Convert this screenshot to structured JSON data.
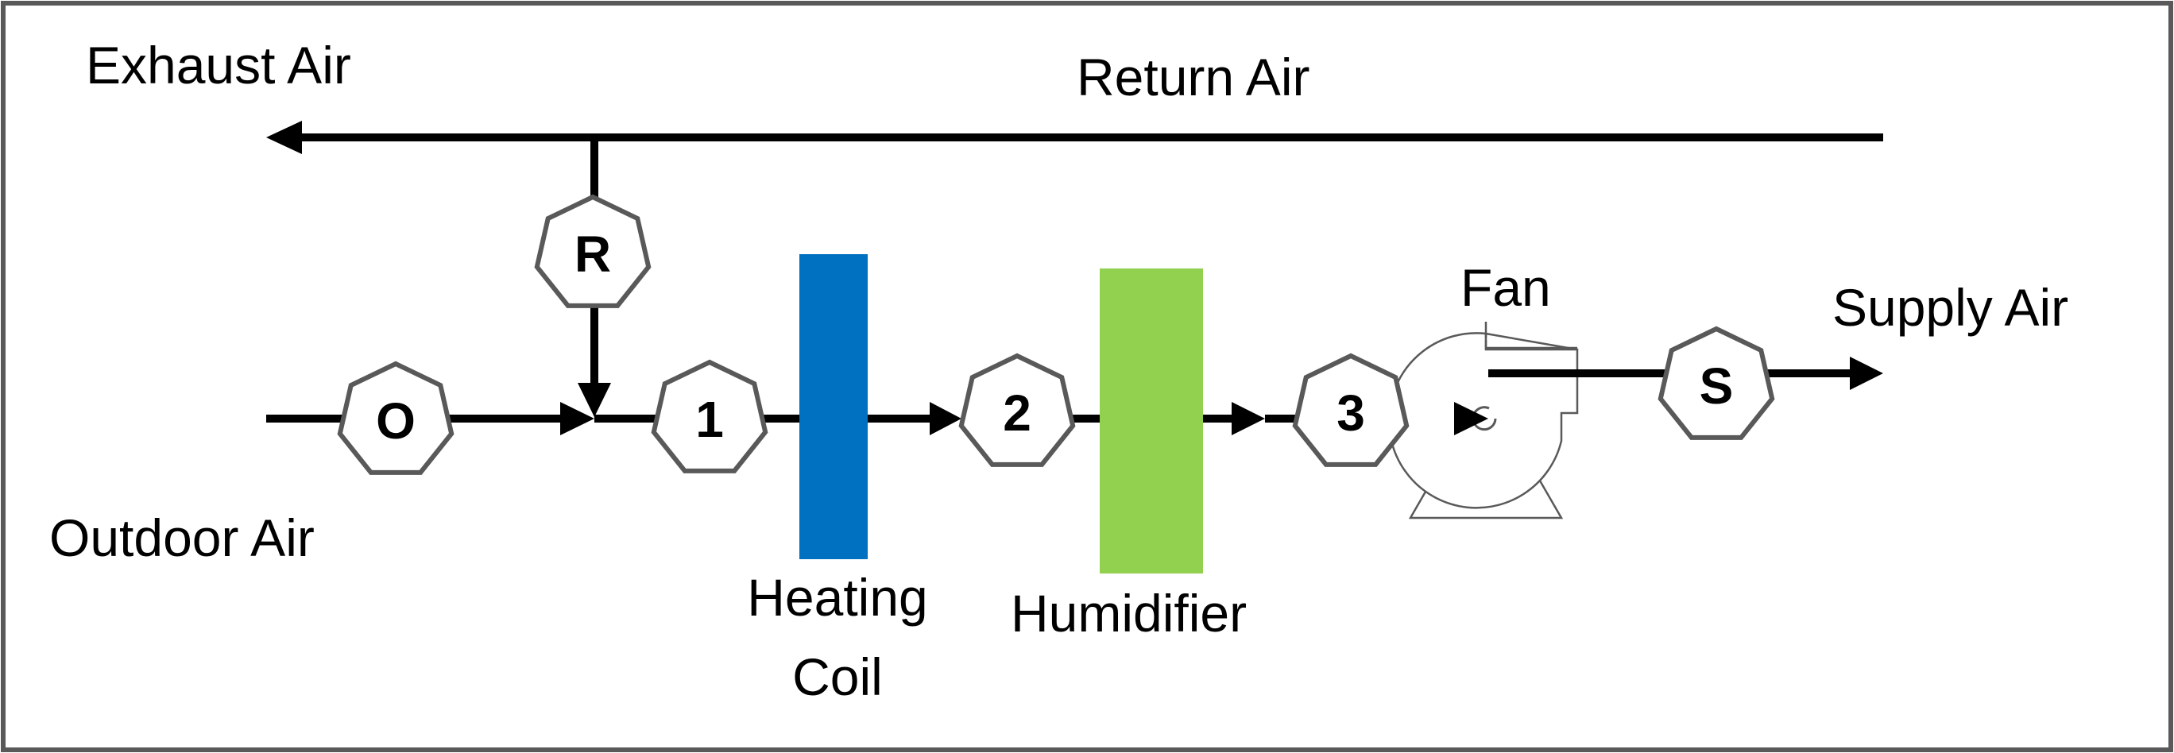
{
  "labels": {
    "exhaust_air": "Exhaust Air",
    "return_air": "Return Air",
    "outdoor_air": "Outdoor Air",
    "supply_air": "Supply Air",
    "fan": "Fan",
    "heating_coil_line1": "Heating",
    "heating_coil_line2": "Coil",
    "humidifier": "Humidifier"
  },
  "nodes": {
    "O": "O",
    "R": "R",
    "n1": "1",
    "n2": "2",
    "n3": "3",
    "S": "S"
  },
  "colors": {
    "heating_coil": "#0070C0",
    "humidifier": "#92D050",
    "node_border": "#595959",
    "frame": "#595959",
    "flow_line": "#000000"
  },
  "icons": {
    "fan": "centrifugal-fan-icon",
    "arrow": "arrowhead-icon"
  }
}
